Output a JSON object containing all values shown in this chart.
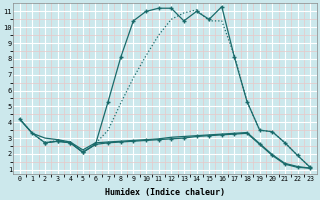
{
  "xlabel": "Humidex (Indice chaleur)",
  "bg_color": "#cce8ec",
  "line_color": "#1a6b6b",
  "grid_color_major": "#ffffff",
  "grid_color_minor": "#e8c8c8",
  "ylim": [
    0.7,
    11.5
  ],
  "xlim": [
    -0.5,
    23.5
  ],
  "line1_x": [
    0,
    1,
    2,
    3,
    4,
    5,
    6,
    7,
    8,
    9,
    10,
    11,
    12,
    13,
    14,
    15,
    16,
    17,
    18,
    19,
    20,
    21,
    22,
    23
  ],
  "line1_y": [
    4.2,
    3.3,
    2.7,
    2.8,
    2.7,
    2.1,
    2.6,
    2.7,
    2.75,
    2.8,
    2.85,
    2.9,
    2.95,
    3.0,
    3.1,
    3.15,
    3.2,
    3.25,
    3.3,
    2.6,
    1.9,
    1.35,
    1.15,
    1.1
  ],
  "line2_x": [
    2,
    3,
    4,
    5,
    6,
    7,
    8,
    9,
    10,
    11,
    12,
    13,
    14,
    15,
    16,
    17,
    18,
    19,
    20,
    21,
    22,
    23
  ],
  "line2_y": [
    2.7,
    2.8,
    2.7,
    2.1,
    2.6,
    5.3,
    8.1,
    10.4,
    11.0,
    11.2,
    11.2,
    10.4,
    11.0,
    10.5,
    11.3,
    8.1,
    5.3,
    3.5,
    3.4,
    2.7,
    1.9,
    1.15
  ],
  "line3_x": [
    0,
    1,
    2,
    3,
    4,
    5,
    6,
    7,
    8,
    9,
    10,
    11,
    12,
    13,
    14,
    15,
    16,
    17,
    18,
    19,
    20,
    21,
    22,
    23
  ],
  "line3_y": [
    4.2,
    3.3,
    2.7,
    2.85,
    2.75,
    2.1,
    2.65,
    3.5,
    5.2,
    6.8,
    8.2,
    9.5,
    10.5,
    10.9,
    11.1,
    10.4,
    10.4,
    8.2,
    5.3,
    3.5,
    3.4,
    2.7,
    1.9,
    1.15
  ],
  "line4_x": [
    0,
    1,
    2,
    3,
    4,
    5,
    6,
    7,
    8,
    9,
    10,
    11,
    12,
    13,
    14,
    15,
    16,
    17,
    18,
    19,
    20,
    21,
    22,
    23
  ],
  "line4_y": [
    4.2,
    3.3,
    3.0,
    2.9,
    2.75,
    2.25,
    2.7,
    2.75,
    2.8,
    2.85,
    2.9,
    2.95,
    3.05,
    3.1,
    3.15,
    3.2,
    3.25,
    3.3,
    3.35,
    2.65,
    1.95,
    1.4,
    1.2,
    1.1
  ],
  "yticks": [
    1,
    2,
    3,
    4,
    5,
    6,
    7,
    8,
    9,
    10,
    11
  ],
  "xticks": [
    0,
    1,
    2,
    3,
    4,
    5,
    6,
    7,
    8,
    9,
    10,
    11,
    12,
    13,
    14,
    15,
    16,
    17,
    18,
    19,
    20,
    21,
    22,
    23
  ]
}
